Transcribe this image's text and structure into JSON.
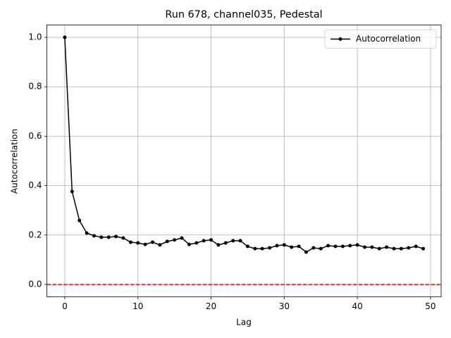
{
  "chart_data": {
    "type": "line",
    "title": "Run 678, channel035, Pedestal",
    "x_label": "Lag",
    "y_label": "Autocorrelation",
    "x": [
      0,
      1,
      2,
      3,
      4,
      5,
      6,
      7,
      8,
      9,
      10,
      11,
      12,
      13,
      14,
      15,
      16,
      17,
      18,
      19,
      20,
      21,
      22,
      23,
      24,
      25,
      26,
      27,
      28,
      29,
      30,
      31,
      32,
      33,
      34,
      35,
      36,
      37,
      38,
      39,
      40,
      41,
      42,
      43,
      44,
      45,
      46,
      47,
      48,
      49
    ],
    "series": [
      {
        "name": "Autocorrelation",
        "color": "#000000",
        "values": [
          1.0,
          0.376,
          0.259,
          0.208,
          0.197,
          0.191,
          0.191,
          0.194,
          0.188,
          0.171,
          0.168,
          0.162,
          0.171,
          0.16,
          0.174,
          0.18,
          0.188,
          0.162,
          0.168,
          0.177,
          0.18,
          0.16,
          0.168,
          0.177,
          0.177,
          0.154,
          0.145,
          0.145,
          0.148,
          0.157,
          0.16,
          0.151,
          0.154,
          0.131,
          0.148,
          0.145,
          0.157,
          0.154,
          0.154,
          0.157,
          0.16,
          0.151,
          0.151,
          0.145,
          0.151,
          0.145,
          0.145,
          0.148,
          0.154,
          0.145
        ]
      }
    ],
    "hline": {
      "value": 0,
      "color": "#ff0000"
    },
    "xlim": [
      -2.45,
      51.45
    ],
    "ylim": [
      -0.05,
      1.05
    ],
    "xticks": [
      0,
      10,
      20,
      30,
      40,
      50
    ],
    "yticks": [
      {
        "value": 0,
        "label": "0.0"
      },
      0.2,
      0.4,
      0.6,
      0.8,
      {
        "value": 1,
        "label": "1.0"
      }
    ],
    "grid": true,
    "legend": "upper right"
  }
}
